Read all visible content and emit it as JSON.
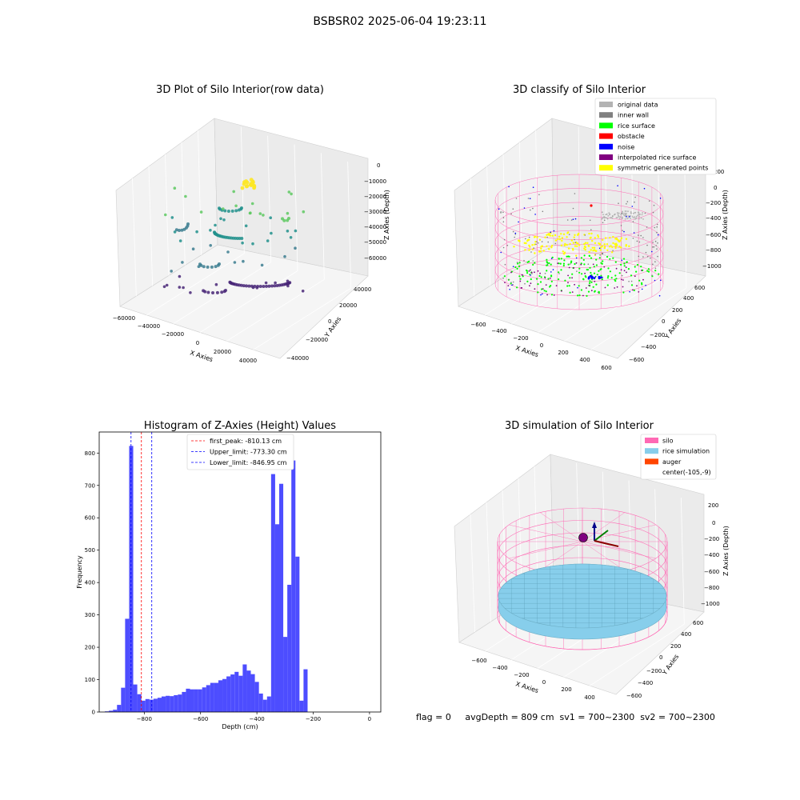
{
  "figure": {
    "suptitle": "BSBSR02 2025-06-04 19:23:11",
    "status_text": "flag = 0     avgDepth = 809 cm  sv1 = 700~2300  sv2 = 700~2300"
  },
  "colors": {
    "viridis_purple": "#482677",
    "viridis_blue": "#3b7c8f",
    "viridis_teal": "#21918c",
    "viridis_green": "#5ec962",
    "viridis_yellow": "#fde725",
    "original_data": "#b3b3b3",
    "inner_wall": "#808080",
    "rice_surface": "#00ff00",
    "obstacle": "#ff0000",
    "noise": "#0000ff",
    "interpolated_rice_surface": "#800080",
    "symmetric_generated_points": "#ffff00",
    "silo": "#ff69b4",
    "rice_simulation": "#87ceeb",
    "auger": "#ff4500",
    "histogram_bar": "#4d4dff",
    "first_peak_line": "#ff0000",
    "limit_line": "#0000ff"
  },
  "chart_data": [
    {
      "type": "scatter",
      "title": "3D Plot of Silo Interior(row data)",
      "xlabel": "X Axies",
      "ylabel": "Y Axies",
      "zlabel": "Z Axies (Depth)",
      "x_ticks": [
        "−60000",
        "−40000",
        "−20000",
        "0",
        "20000",
        "40000"
      ],
      "y_ticks": [
        "−40000",
        "−20000",
        "0",
        "20000",
        "40000"
      ],
      "z_ticks": [
        "−60000",
        "−50000",
        "−40000",
        "−30000",
        "−20000",
        "−10000",
        "0"
      ],
      "xlim": [
        -60000,
        50000
      ],
      "ylim": [
        -50000,
        50000
      ],
      "zlim": [
        -65000,
        5000
      ],
      "colormap": "viridis"
    },
    {
      "type": "scatter",
      "title": "3D classify of Silo Interior",
      "xlabel": "X Axies",
      "ylabel": "Y Axies",
      "zlabel": "Z Axies (Depth)",
      "x_ticks": [
        "−600",
        "−400",
        "−200",
        "0",
        "200",
        "400",
        "600"
      ],
      "y_ticks": [
        "−600",
        "−400",
        "−200",
        "0",
        "200",
        "400",
        "600"
      ],
      "z_ticks": [
        "−1000",
        "−800",
        "−600",
        "−400",
        "−200",
        "0",
        "200"
      ],
      "xlim": [
        -700,
        650
      ],
      "ylim": [
        -650,
        650
      ],
      "zlim": [
        -1100,
        250
      ],
      "legend_position": "top-right",
      "legend": [
        {
          "label": "original data",
          "color": "#b3b3b3"
        },
        {
          "label": "inner wall",
          "color": "#808080"
        },
        {
          "label": "rice surface",
          "color": "#00ff00"
        },
        {
          "label": "obstacle",
          "color": "#ff0000"
        },
        {
          "label": "noise",
          "color": "#0000ff"
        },
        {
          "label": "interpolated rice surface",
          "color": "#800080"
        },
        {
          "label": "symmetric generated points",
          "color": "#ffff00"
        }
      ]
    },
    {
      "type": "bar",
      "title": "Histogram of Z-Axies (Height) Values",
      "xlabel": "Depth (cm)",
      "ylabel": "Frequency",
      "xlim": [
        -960,
        40
      ],
      "ylim": [
        0,
        865
      ],
      "x_ticks": [
        -800,
        -600,
        -400,
        -200,
        0
      ],
      "y_ticks": [
        0,
        100,
        200,
        300,
        400,
        500,
        600,
        700,
        800
      ],
      "bin_start": -940,
      "bin_width": 14.4,
      "values": [
        2,
        4,
        7,
        22,
        75,
        288,
        822,
        85,
        55,
        35,
        40,
        38,
        41,
        44,
        48,
        50,
        49,
        52,
        54,
        62,
        72,
        70,
        70,
        70,
        76,
        83,
        90,
        90,
        98,
        102,
        110,
        116,
        124,
        112,
        147,
        128,
        117,
        93,
        57,
        38,
        48,
        735,
        580,
        705,
        232,
        393,
        777,
        480,
        35,
        132
      ],
      "vlines": [
        {
          "label": "first_peak: -810.13 cm",
          "x": -810.13,
          "color": "#ff0000"
        },
        {
          "label": "Upper_limit: -773.30 cm",
          "x": -773.3,
          "color": "#0000ff"
        },
        {
          "label": "Lower_limit: -846.95 cm",
          "x": -846.95,
          "color": "#0000ff"
        }
      ],
      "legend_position": "top-center"
    },
    {
      "type": "scatter",
      "title": "3D simulation of Silo Interior",
      "xlabel": "X Axies",
      "ylabel": "Y Axies",
      "zlabel": "Z Axies (Depth)",
      "x_ticks": [
        "−600",
        "−400",
        "−200",
        "0",
        "200",
        "400"
      ],
      "y_ticks": [
        "−600",
        "−400",
        "−200",
        "0",
        "200",
        "400",
        "600"
      ],
      "z_ticks": [
        "−1000",
        "−800",
        "−600",
        "−400",
        "−200",
        "0",
        "200"
      ],
      "xlim": [
        -700,
        550
      ],
      "ylim": [
        -650,
        650
      ],
      "zlim": [
        -1100,
        250
      ],
      "legend_position": "top-right",
      "legend": [
        {
          "label": "silo",
          "color": "#ff69b4"
        },
        {
          "label": "rice simulation",
          "color": "#87ceeb"
        },
        {
          "label": "auger",
          "color": "#ff4500"
        },
        {
          "label": "center(-105,-9)",
          "color": ""
        }
      ]
    }
  ]
}
